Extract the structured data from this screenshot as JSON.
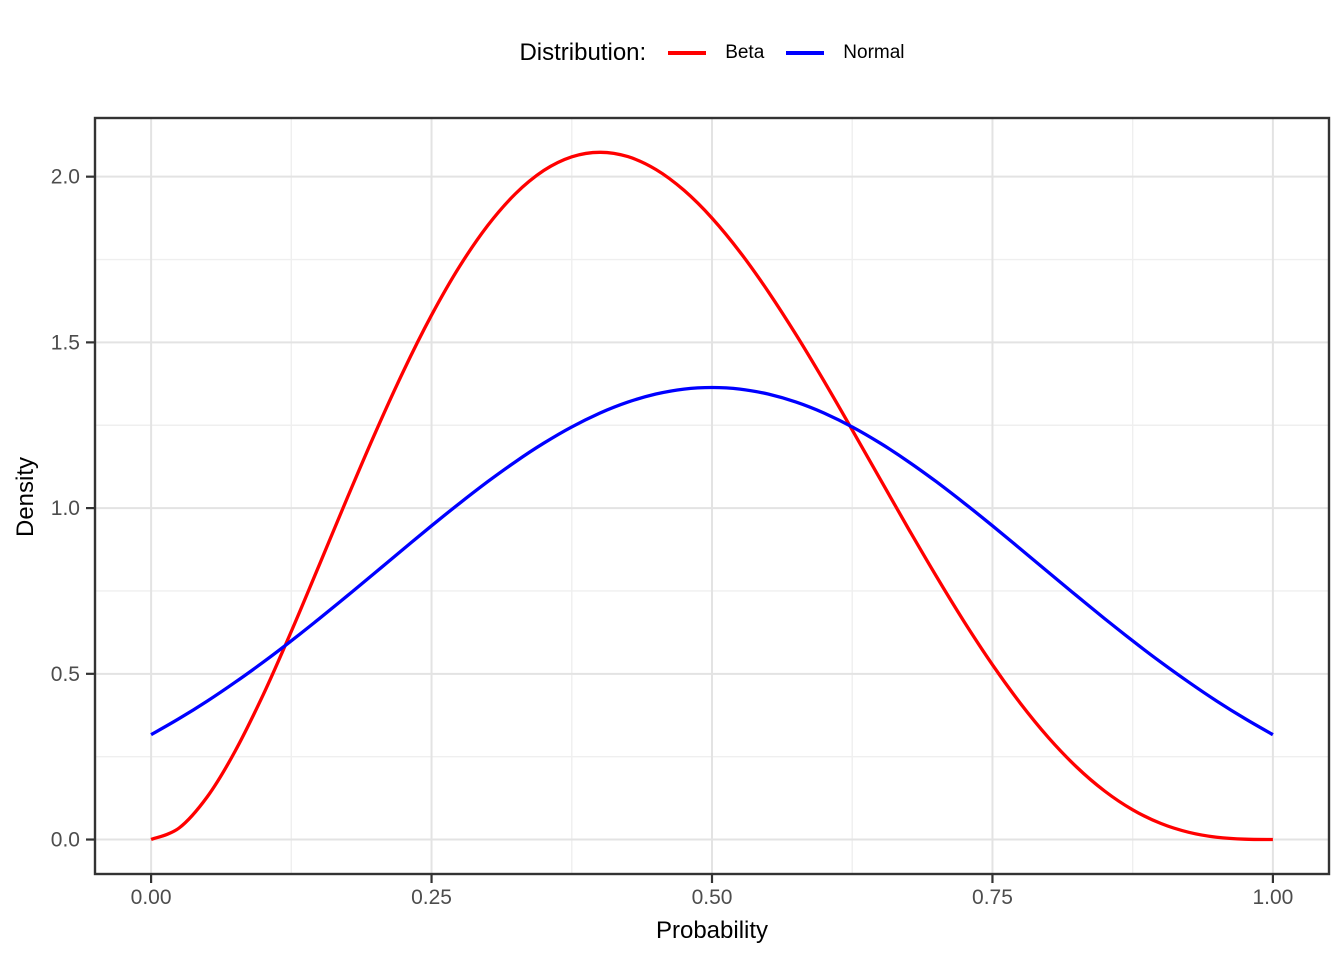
{
  "legend": {
    "title": "Distribution:",
    "items": [
      {
        "label": "Beta",
        "color": "#FF0000"
      },
      {
        "label": "Normal",
        "color": "#0000FF"
      }
    ]
  },
  "axes": {
    "x": {
      "title": "Probability",
      "tick_labels": [
        "0.00",
        "0.25",
        "0.50",
        "0.75",
        "1.00"
      ]
    },
    "y": {
      "title": "Density",
      "tick_labels": [
        "0.0",
        "0.5",
        "1.0",
        "1.5",
        "2.0"
      ]
    }
  },
  "chart_data": {
    "type": "line",
    "title": "",
    "legend_title": "Distribution:",
    "legend_position": "top-center",
    "xlabel": "Probability",
    "ylabel": "Density",
    "xlim": [
      -0.05,
      1.05
    ],
    "ylim": [
      -0.104,
      2.177
    ],
    "x_ticks": [
      0,
      0.25,
      0.5,
      0.75,
      1
    ],
    "x_minor_ticks": [
      0.125,
      0.375,
      0.625,
      0.875
    ],
    "y_ticks": [
      0,
      0.5,
      1,
      1.5,
      2
    ],
    "y_minor_ticks": [
      0.25,
      0.75,
      1.25,
      1.75
    ],
    "grid": "major+minor",
    "x": [
      0,
      0.025,
      0.05,
      0.075,
      0.1,
      0.125,
      0.15,
      0.175,
      0.2,
      0.225,
      0.25,
      0.275,
      0.3,
      0.325,
      0.35,
      0.375,
      0.4,
      0.425,
      0.45,
      0.475,
      0.5,
      0.525,
      0.55,
      0.575,
      0.6,
      0.625,
      0.65,
      0.675,
      0.7,
      0.725,
      0.75,
      0.775,
      0.8,
      0.825,
      0.85,
      0.875,
      0.9,
      0.925,
      0.95,
      0.975,
      1
    ],
    "series": [
      {
        "name": "Beta",
        "color": "#FF0000",
        "peak": {
          "x": 0.4,
          "y": 2.074
        },
        "values": [
          0,
          0.0348,
          0.1286,
          0.2671,
          0.4374,
          0.628,
          0.8291,
          1.0318,
          1.2288,
          1.4138,
          1.582,
          1.7292,
          1.8522,
          1.9491,
          2.0185,
          2.0599,
          2.0736,
          2.0604,
          2.0215,
          1.9589,
          1.875,
          1.7724,
          1.6539,
          1.5229,
          1.3824,
          1.236,
          1.0869,
          0.9385,
          0.7938,
          0.6559,
          0.5273,
          0.4105,
          0.3072,
          0.2188,
          0.1463,
          0.0897,
          0.0486,
          0.0217,
          0.0068,
          0.0009,
          0
        ]
      },
      {
        "name": "Normal",
        "color": "#0000FF",
        "peak": {
          "x": 0.5,
          "y": 1.364
        },
        "values": [
          0.3164,
          0.3648,
          0.4176,
          0.4746,
          0.5354,
          0.5996,
          0.6666,
          0.7357,
          0.8061,
          0.8767,
          0.9466,
          1.0146,
          1.0796,
          1.1404,
          1.1959,
          1.2449,
          1.2865,
          1.3198,
          1.3442,
          1.359,
          1.3639,
          1.359,
          1.3442,
          1.3198,
          1.2865,
          1.2449,
          1.1959,
          1.1404,
          1.0796,
          1.0146,
          0.9466,
          0.8767,
          0.8061,
          0.7357,
          0.6666,
          0.5996,
          0.5354,
          0.4746,
          0.4176,
          0.3648,
          0.3164
        ]
      }
    ],
    "colors": {
      "grid_major": "#E3E3E3",
      "grid_minor": "#EFEFEF",
      "panel_border": "#333333",
      "tick": "#333333",
      "tick_label": "#4D4D4D",
      "axis_title": "#000000"
    }
  }
}
